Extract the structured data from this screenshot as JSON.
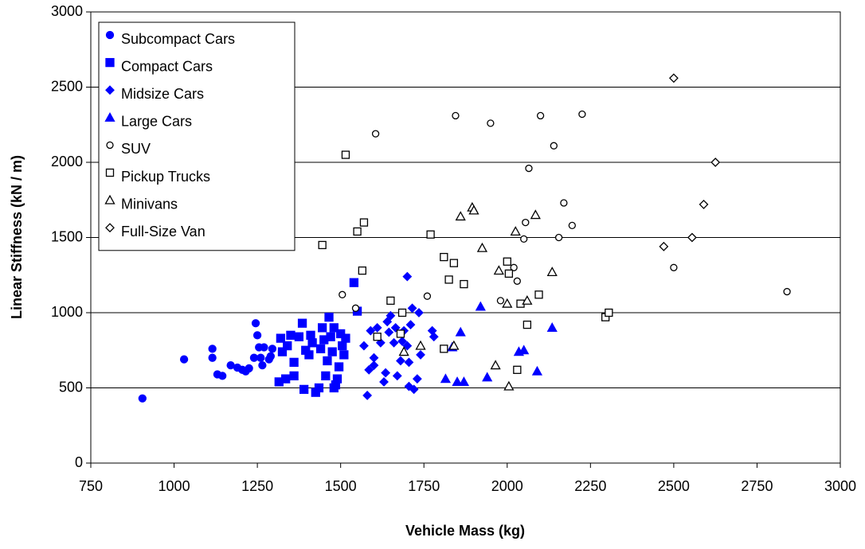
{
  "chart_data": {
    "type": "scatter",
    "x_label": "Vehicle Mass (kg)",
    "y_label": "Linear Stiffness (kN / m)",
    "xlim": [
      750,
      3000
    ],
    "xticks": [
      750,
      1000,
      1250,
      1500,
      1750,
      2000,
      2250,
      2500,
      2750,
      3000
    ],
    "ylim": [
      0,
      3000
    ],
    "yticks": [
      0,
      500,
      1000,
      1500,
      2000,
      2500,
      3000
    ],
    "grid": true,
    "legend": "upper left",
    "series": [
      {
        "name": "Subcompact Cars",
        "color": "#0000ff",
        "marker": "circle",
        "filled": true,
        "x": [
          905,
          1030,
          1115,
          1115,
          1130,
          1145,
          1170,
          1190,
          1205,
          1215,
          1225,
          1245,
          1250,
          1255,
          1260,
          1265,
          1270,
          1285,
          1290,
          1295,
          1240
        ],
        "values": [
          430,
          690,
          760,
          700,
          590,
          580,
          650,
          635,
          620,
          610,
          630,
          930,
          850,
          770,
          700,
          650,
          770,
          690,
          710,
          760,
          700
        ]
      },
      {
        "name": "Compact Cars",
        "color": "#0000ff",
        "marker": "square",
        "filled": true,
        "x": [
          1315,
          1320,
          1325,
          1335,
          1340,
          1350,
          1360,
          1360,
          1375,
          1385,
          1390,
          1395,
          1405,
          1410,
          1415,
          1425,
          1435,
          1440,
          1445,
          1450,
          1455,
          1460,
          1465,
          1470,
          1475,
          1480,
          1485,
          1490,
          1495,
          1500,
          1505,
          1510,
          1515,
          1540,
          1550,
          1480
        ],
        "values": [
          540,
          830,
          740,
          560,
          780,
          850,
          580,
          670,
          840,
          930,
          490,
          750,
          720,
          850,
          800,
          470,
          500,
          760,
          900,
          820,
          580,
          680,
          970,
          840,
          740,
          900,
          520,
          560,
          640,
          860,
          780,
          720,
          830,
          1200,
          1010,
          500
        ]
      },
      {
        "name": "Midsize Cars",
        "color": "#0000ff",
        "marker": "diamond",
        "filled": true,
        "x": [
          1580,
          1570,
          1585,
          1590,
          1600,
          1600,
          1610,
          1620,
          1630,
          1635,
          1640,
          1645,
          1650,
          1660,
          1665,
          1670,
          1680,
          1685,
          1690,
          1700,
          1700,
          1705,
          1705,
          1710,
          1715,
          1720,
          1730,
          1735,
          1740,
          1775,
          1780
        ],
        "values": [
          450,
          780,
          620,
          880,
          650,
          700,
          900,
          800,
          540,
          600,
          940,
          870,
          980,
          800,
          900,
          580,
          680,
          810,
          880,
          1240,
          780,
          670,
          510,
          920,
          1030,
          490,
          560,
          1000,
          720,
          880,
          840
        ]
      },
      {
        "name": "Large Cars",
        "color": "#0000ff",
        "marker": "triangle",
        "filled": true,
        "x": [
          1815,
          1835,
          1850,
          1860,
          1870,
          1920,
          1940,
          2035,
          2050,
          2090,
          2135
        ],
        "values": [
          560,
          770,
          540,
          870,
          540,
          1040,
          570,
          740,
          750,
          610,
          900
        ]
      },
      {
        "name": "SUV",
        "color": "#000000",
        "marker": "circle",
        "filled": false,
        "x": [
          1605,
          1845,
          1950,
          2100,
          2225,
          2140,
          2065,
          2170,
          2195,
          2055,
          2155,
          2050,
          2020,
          2030,
          1980,
          1545,
          1760,
          1505,
          2500,
          2840
        ],
        "values": [
          2190,
          2310,
          2260,
          2310,
          2320,
          2110,
          1960,
          1730,
          1580,
          1600,
          1500,
          1490,
          1300,
          1210,
          1080,
          1030,
          1110,
          1120,
          1300,
          1140
        ]
      },
      {
        "name": "Pickup Trucks",
        "color": "#000000",
        "marker": "square",
        "filled": false,
        "x": [
          1515,
          1570,
          1550,
          1445,
          1770,
          1565,
          1810,
          1840,
          1825,
          1870,
          2000,
          2005,
          2040,
          2095,
          1650,
          1685,
          1610,
          1680,
          1810,
          2060,
          2030,
          2295,
          2305
        ],
        "values": [
          2050,
          1600,
          1540,
          1450,
          1520,
          1280,
          1370,
          1330,
          1220,
          1190,
          1340,
          1260,
          1060,
          1120,
          1080,
          1000,
          840,
          860,
          760,
          920,
          620,
          970,
          1000
        ]
      },
      {
        "name": "Minivans",
        "color": "#000000",
        "marker": "triangle",
        "filled": false,
        "x": [
          1895,
          1900,
          1860,
          2085,
          2025,
          1925,
          1975,
          2135,
          2000,
          2060,
          1740,
          1840,
          1690,
          1965,
          2005
        ],
        "values": [
          1700,
          1680,
          1640,
          1650,
          1540,
          1430,
          1280,
          1270,
          1060,
          1080,
          780,
          780,
          740,
          650,
          510
        ]
      },
      {
        "name": "Full-Size Van",
        "color": "#000000",
        "marker": "diamond",
        "filled": false,
        "x": [
          2500,
          2625,
          2590,
          2555,
          2470
        ],
        "values": [
          2560,
          2000,
          1720,
          1500,
          1440
        ]
      }
    ]
  }
}
